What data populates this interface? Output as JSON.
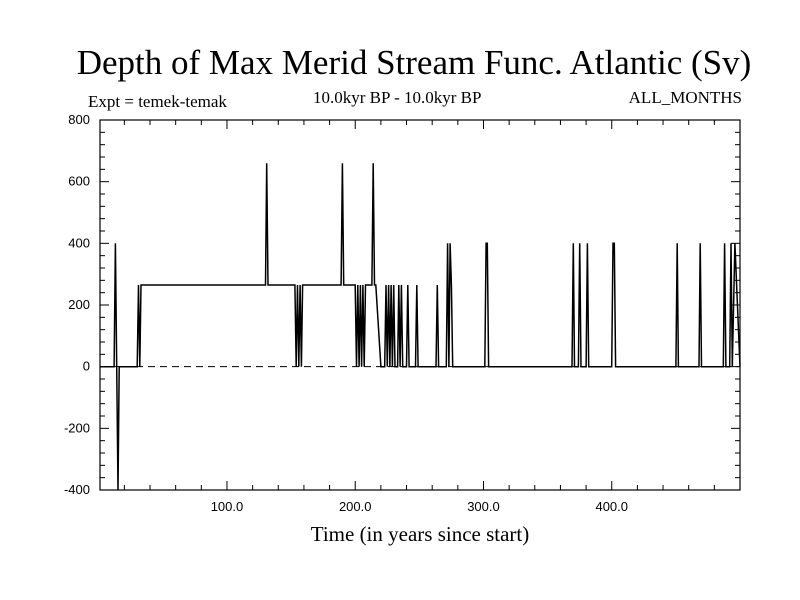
{
  "title": "Depth of Max Merid Stream Func. Atlantic (Sv)",
  "experiment": "Expt = temek-temak",
  "period": "10.0kyr BP - 10.0kyr BP",
  "months": "ALL_MONTHS",
  "chart_data": {
    "type": "line",
    "title": "Depth of Max Merid Stream Func. Atlantic (Sv)",
    "xlabel": "Time (in years since start)",
    "ylabel": "",
    "xlim": [
      1,
      500
    ],
    "ylim": [
      -400,
      800
    ],
    "x_ticks": [
      100,
      200,
      300,
      400
    ],
    "x_tick_labels": [
      "100.0",
      "200.0",
      "300.0",
      "400.0"
    ],
    "y_ticks": [
      -400,
      -200,
      0,
      200,
      400,
      600,
      800
    ],
    "y_tick_labels": [
      "-400",
      "-200",
      "0",
      "200",
      "400",
      "600",
      "800"
    ],
    "zero_line": "dashed",
    "grid": false,
    "series": [
      {
        "x": [
          1,
          12,
          13,
          14,
          15,
          16,
          17,
          18,
          30,
          31,
          32,
          33,
          34,
          35,
          130,
          131,
          132,
          133,
          134,
          153,
          154,
          155,
          156,
          157,
          158,
          159,
          160,
          189,
          190,
          191,
          192,
          200,
          201,
          202,
          203,
          204,
          205,
          206,
          207,
          208,
          209,
          212,
          213,
          214,
          215,
          216,
          220,
          223,
          224,
          225,
          226,
          227,
          228,
          229,
          230,
          231,
          233,
          234,
          235,
          236,
          237,
          240,
          241,
          242,
          243,
          247,
          248,
          249,
          250,
          263,
          264,
          265,
          271,
          272,
          273,
          274,
          275,
          276,
          277,
          301,
          302,
          303,
          304,
          369,
          370,
          371,
          374,
          375,
          376,
          380,
          381,
          382,
          400,
          401,
          402,
          403,
          404,
          450,
          451,
          452,
          468,
          469,
          470,
          487,
          488,
          489,
          492,
          493,
          494,
          496,
          500
        ],
        "y": [
          0,
          0,
          400,
          0,
          -400,
          0,
          0,
          0,
          0,
          265,
          0,
          265,
          265,
          265,
          265,
          660,
          265,
          265,
          265,
          265,
          0,
          265,
          0,
          265,
          0,
          265,
          265,
          265,
          660,
          265,
          265,
          265,
          0,
          265,
          0,
          265,
          0,
          265,
          0,
          265,
          265,
          265,
          265,
          660,
          265,
          265,
          0,
          0,
          265,
          0,
          265,
          0,
          265,
          0,
          265,
          0,
          0,
          265,
          0,
          265,
          0,
          0,
          265,
          0,
          0,
          0,
          265,
          0,
          0,
          0,
          265,
          0,
          0,
          400,
          0,
          400,
          265,
          0,
          0,
          0,
          400,
          400,
          0,
          0,
          400,
          0,
          0,
          400,
          0,
          0,
          400,
          0,
          0,
          400,
          400,
          0,
          0,
          0,
          400,
          0,
          0,
          400,
          0,
          0,
          400,
          0,
          0,
          400,
          0,
          400,
          0
        ]
      }
    ]
  }
}
